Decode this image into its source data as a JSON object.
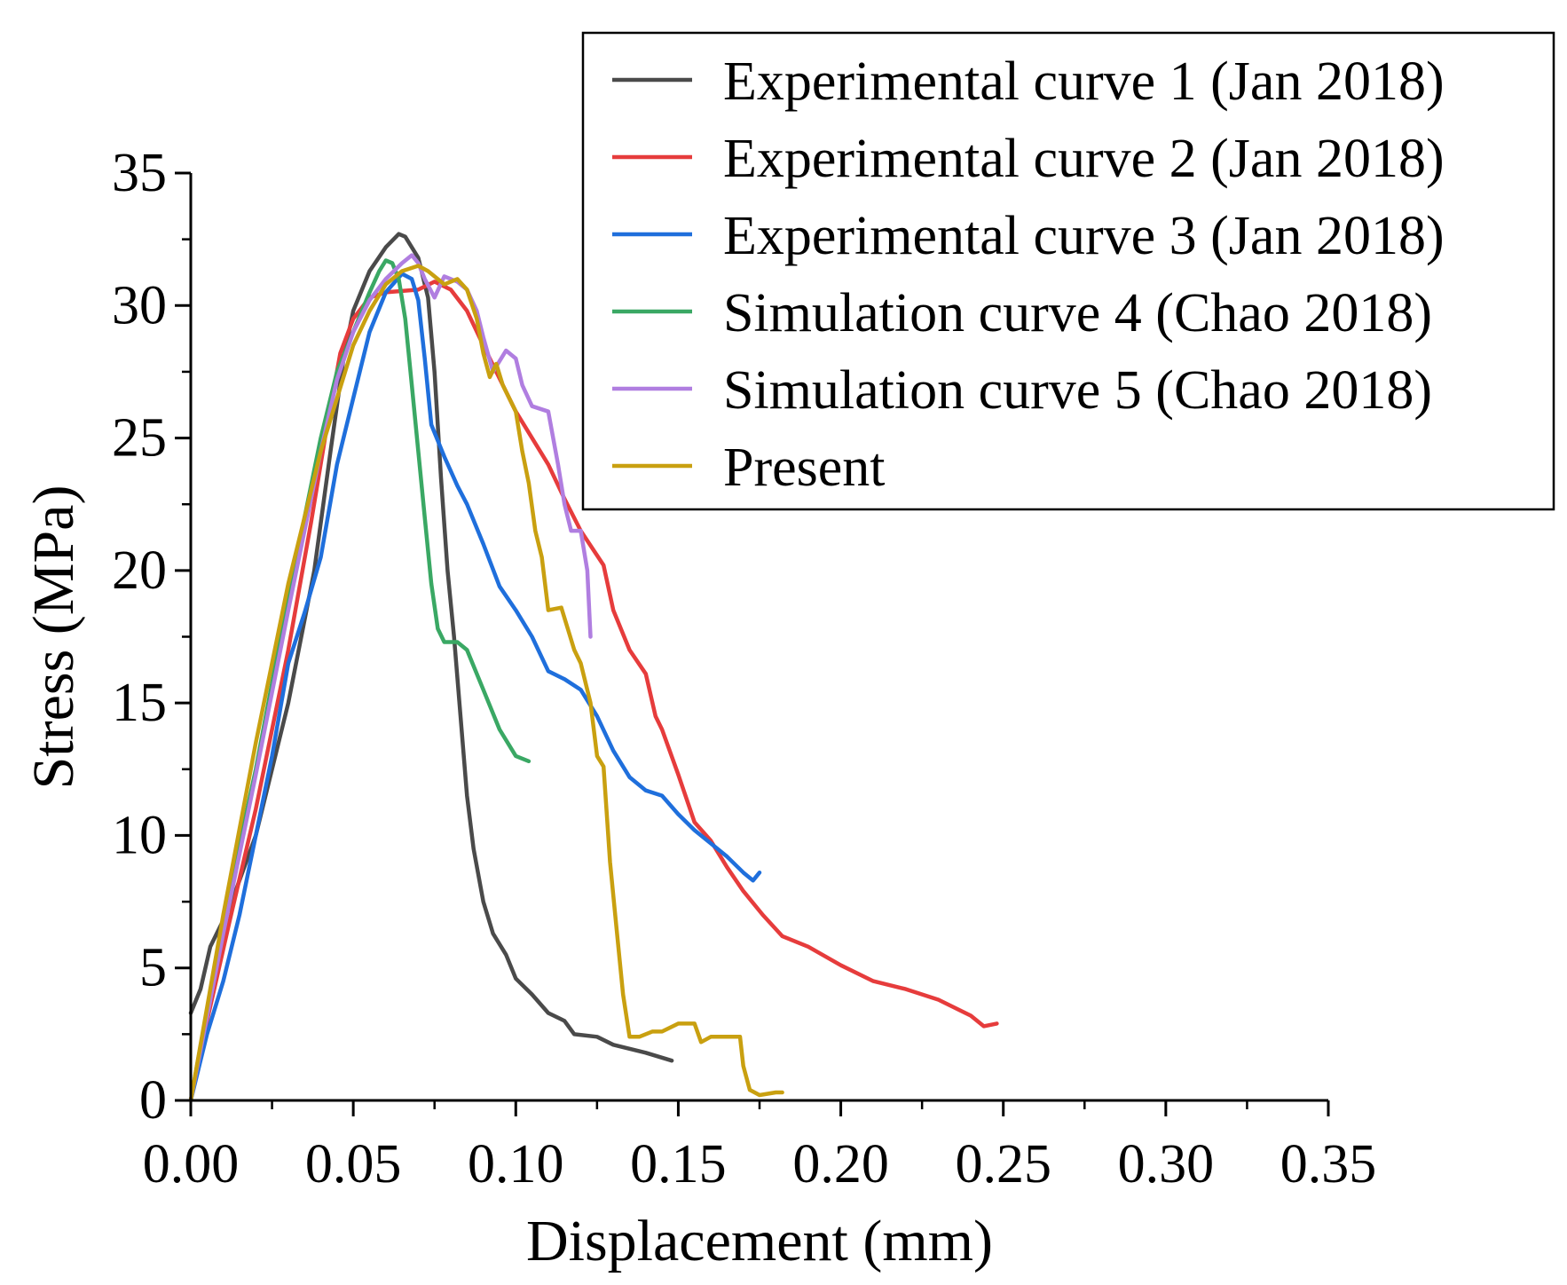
{
  "chart_data": {
    "type": "line",
    "title": "",
    "xlabel": "Displacement (mm)",
    "ylabel": "Stress (MPa)",
    "xlim": [
      0,
      0.35
    ],
    "ylim": [
      0,
      35
    ],
    "xticks": [
      "0.00",
      "0.05",
      "0.10",
      "0.15",
      "0.20",
      "0.25",
      "0.30",
      "0.35"
    ],
    "yticks": [
      "0",
      "5",
      "10",
      "15",
      "20",
      "25",
      "30",
      "35"
    ],
    "grid": false,
    "legend_position": "top-right",
    "series": [
      {
        "name": "Experimental curve 1 (Jan 2018)",
        "color": "#4a4a4a",
        "points": [
          [
            0,
            3.3
          ],
          [
            0.003,
            4.2
          ],
          [
            0.006,
            5.8
          ],
          [
            0.012,
            7.3
          ],
          [
            0.02,
            10
          ],
          [
            0.03,
            15
          ],
          [
            0.038,
            20
          ],
          [
            0.043,
            24.5
          ],
          [
            0.047,
            28
          ],
          [
            0.05,
            29.8
          ],
          [
            0.055,
            31.3
          ],
          [
            0.06,
            32.2
          ],
          [
            0.064,
            32.7
          ],
          [
            0.066,
            32.6
          ],
          [
            0.07,
            31.8
          ],
          [
            0.073,
            30.3
          ],
          [
            0.075,
            27.5
          ],
          [
            0.077,
            23.5
          ],
          [
            0.079,
            20
          ],
          [
            0.081,
            17.5
          ],
          [
            0.083,
            14.5
          ],
          [
            0.085,
            11.5
          ],
          [
            0.087,
            9.5
          ],
          [
            0.09,
            7.5
          ],
          [
            0.093,
            6.3
          ],
          [
            0.097,
            5.5
          ],
          [
            0.1,
            4.6
          ],
          [
            0.105,
            4
          ],
          [
            0.11,
            3.3
          ],
          [
            0.115,
            3
          ],
          [
            0.118,
            2.5
          ],
          [
            0.125,
            2.4
          ],
          [
            0.13,
            2.1
          ],
          [
            0.14,
            1.8
          ],
          [
            0.148,
            1.5
          ]
        ]
      },
      {
        "name": "Experimental curve 2 (Jan 2018)",
        "color": "#e63c3c",
        "points": [
          [
            0,
            0
          ],
          [
            0.005,
            3
          ],
          [
            0.012,
            6.8
          ],
          [
            0.02,
            11
          ],
          [
            0.03,
            17
          ],
          [
            0.037,
            21.8
          ],
          [
            0.042,
            25.5
          ],
          [
            0.046,
            28.2
          ],
          [
            0.05,
            29.5
          ],
          [
            0.055,
            30.3
          ],
          [
            0.06,
            30.5
          ],
          [
            0.07,
            30.6
          ],
          [
            0.075,
            30.9
          ],
          [
            0.08,
            30.6
          ],
          [
            0.085,
            29.8
          ],
          [
            0.09,
            28.5
          ],
          [
            0.1,
            26
          ],
          [
            0.11,
            24
          ],
          [
            0.115,
            22.7
          ],
          [
            0.12,
            21.5
          ],
          [
            0.127,
            20.2
          ],
          [
            0.13,
            18.5
          ],
          [
            0.135,
            17
          ],
          [
            0.14,
            16.1
          ],
          [
            0.143,
            14.5
          ],
          [
            0.145,
            14
          ],
          [
            0.15,
            12.3
          ],
          [
            0.155,
            10.5
          ],
          [
            0.16,
            9.8
          ],
          [
            0.165,
            8.8
          ],
          [
            0.17,
            7.9
          ],
          [
            0.176,
            7
          ],
          [
            0.182,
            6.2
          ],
          [
            0.19,
            5.8
          ],
          [
            0.2,
            5.1
          ],
          [
            0.21,
            4.5
          ],
          [
            0.22,
            4.2
          ],
          [
            0.23,
            3.8
          ],
          [
            0.24,
            3.2
          ],
          [
            0.244,
            2.8
          ],
          [
            0.248,
            2.9
          ]
        ]
      },
      {
        "name": "Experimental curve 3 (Jan 2018)",
        "color": "#1f6fdc",
        "points": [
          [
            0,
            0
          ],
          [
            0.005,
            2.5
          ],
          [
            0.01,
            4.5
          ],
          [
            0.015,
            7
          ],
          [
            0.02,
            10
          ],
          [
            0.025,
            13
          ],
          [
            0.03,
            16.5
          ],
          [
            0.035,
            18.4
          ],
          [
            0.04,
            20.5
          ],
          [
            0.045,
            24
          ],
          [
            0.05,
            26.5
          ],
          [
            0.055,
            29
          ],
          [
            0.06,
            30.5
          ],
          [
            0.065,
            31.2
          ],
          [
            0.068,
            31
          ],
          [
            0.07,
            30.2
          ],
          [
            0.072,
            28
          ],
          [
            0.074,
            25.5
          ],
          [
            0.078,
            24.3
          ],
          [
            0.082,
            23.2
          ],
          [
            0.085,
            22.5
          ],
          [
            0.09,
            21
          ],
          [
            0.095,
            19.4
          ],
          [
            0.1,
            18.5
          ],
          [
            0.105,
            17.5
          ],
          [
            0.11,
            16.2
          ],
          [
            0.115,
            15.9
          ],
          [
            0.12,
            15.5
          ],
          [
            0.125,
            14.5
          ],
          [
            0.13,
            13.2
          ],
          [
            0.135,
            12.2
          ],
          [
            0.14,
            11.7
          ],
          [
            0.145,
            11.5
          ],
          [
            0.15,
            10.8
          ],
          [
            0.155,
            10.2
          ],
          [
            0.16,
            9.7
          ],
          [
            0.165,
            9.2
          ],
          [
            0.17,
            8.6
          ],
          [
            0.173,
            8.3
          ],
          [
            0.175,
            8.6
          ]
        ]
      },
      {
        "name": "Simulation curve 4 (Chao 2018)",
        "color": "#3aa864",
        "points": [
          [
            0,
            0
          ],
          [
            0.01,
            6.8
          ],
          [
            0.02,
            12.5
          ],
          [
            0.03,
            19
          ],
          [
            0.04,
            25
          ],
          [
            0.045,
            27.5
          ],
          [
            0.05,
            29
          ],
          [
            0.055,
            30.5
          ],
          [
            0.058,
            31.3
          ],
          [
            0.06,
            31.7
          ],
          [
            0.062,
            31.6
          ],
          [
            0.064,
            31
          ],
          [
            0.066,
            29.5
          ],
          [
            0.068,
            27
          ],
          [
            0.07,
            24.5
          ],
          [
            0.072,
            22
          ],
          [
            0.074,
            19.5
          ],
          [
            0.076,
            17.8
          ],
          [
            0.078,
            17.3
          ],
          [
            0.082,
            17.3
          ],
          [
            0.085,
            17
          ],
          [
            0.09,
            15.5
          ],
          [
            0.095,
            14
          ],
          [
            0.1,
            13
          ],
          [
            0.104,
            12.8
          ]
        ]
      },
      {
        "name": "Simulation curve 5 (Chao 2018)",
        "color": "#b07ee0",
        "points": [
          [
            0,
            0
          ],
          [
            0.01,
            6.3
          ],
          [
            0.02,
            12.3
          ],
          [
            0.03,
            18.5
          ],
          [
            0.04,
            24.5
          ],
          [
            0.045,
            27.2
          ],
          [
            0.05,
            29
          ],
          [
            0.055,
            30.2
          ],
          [
            0.06,
            31
          ],
          [
            0.065,
            31.6
          ],
          [
            0.068,
            31.9
          ],
          [
            0.07,
            31.6
          ],
          [
            0.072,
            31
          ],
          [
            0.075,
            30.3
          ],
          [
            0.078,
            31.1
          ],
          [
            0.082,
            30.9
          ],
          [
            0.085,
            30.6
          ],
          [
            0.088,
            29.8
          ],
          [
            0.09,
            28.8
          ],
          [
            0.093,
            27.5
          ],
          [
            0.097,
            28.3
          ],
          [
            0.1,
            28
          ],
          [
            0.102,
            27
          ],
          [
            0.105,
            26.2
          ],
          [
            0.11,
            26
          ],
          [
            0.113,
            24
          ],
          [
            0.115,
            22.5
          ],
          [
            0.117,
            21.5
          ],
          [
            0.12,
            21.5
          ],
          [
            0.122,
            20
          ],
          [
            0.123,
            17.5
          ]
        ]
      },
      {
        "name": "Present",
        "color": "#c9a010",
        "points": [
          [
            0,
            0
          ],
          [
            0.01,
            7
          ],
          [
            0.02,
            13.5
          ],
          [
            0.03,
            19.5
          ],
          [
            0.04,
            24.5
          ],
          [
            0.05,
            28.5
          ],
          [
            0.055,
            29.8
          ],
          [
            0.06,
            30.8
          ],
          [
            0.065,
            31.3
          ],
          [
            0.07,
            31.5
          ],
          [
            0.073,
            31.3
          ],
          [
            0.078,
            30.8
          ],
          [
            0.082,
            31
          ],
          [
            0.085,
            30.6
          ],
          [
            0.088,
            29.5
          ],
          [
            0.09,
            28.2
          ],
          [
            0.092,
            27.3
          ],
          [
            0.094,
            27.8
          ],
          [
            0.096,
            27
          ],
          [
            0.1,
            26
          ],
          [
            0.102,
            24.5
          ],
          [
            0.104,
            23.3
          ],
          [
            0.106,
            21.5
          ],
          [
            0.108,
            20.5
          ],
          [
            0.11,
            18.5
          ],
          [
            0.114,
            18.6
          ],
          [
            0.116,
            17.8
          ],
          [
            0.118,
            17
          ],
          [
            0.12,
            16.5
          ],
          [
            0.123,
            15
          ],
          [
            0.125,
            13
          ],
          [
            0.127,
            12.6
          ],
          [
            0.129,
            9
          ],
          [
            0.131,
            6.5
          ],
          [
            0.133,
            4
          ],
          [
            0.135,
            2.4
          ],
          [
            0.138,
            2.4
          ],
          [
            0.142,
            2.6
          ],
          [
            0.145,
            2.6
          ],
          [
            0.15,
            2.9
          ],
          [
            0.155,
            2.9
          ],
          [
            0.157,
            2.2
          ],
          [
            0.16,
            2.4
          ],
          [
            0.165,
            2.4
          ],
          [
            0.169,
            2.4
          ],
          [
            0.17,
            1.3
          ],
          [
            0.172,
            0.4
          ],
          [
            0.175,
            0.2
          ],
          [
            0.18,
            0.3
          ],
          [
            0.182,
            0.3
          ]
        ]
      }
    ]
  }
}
